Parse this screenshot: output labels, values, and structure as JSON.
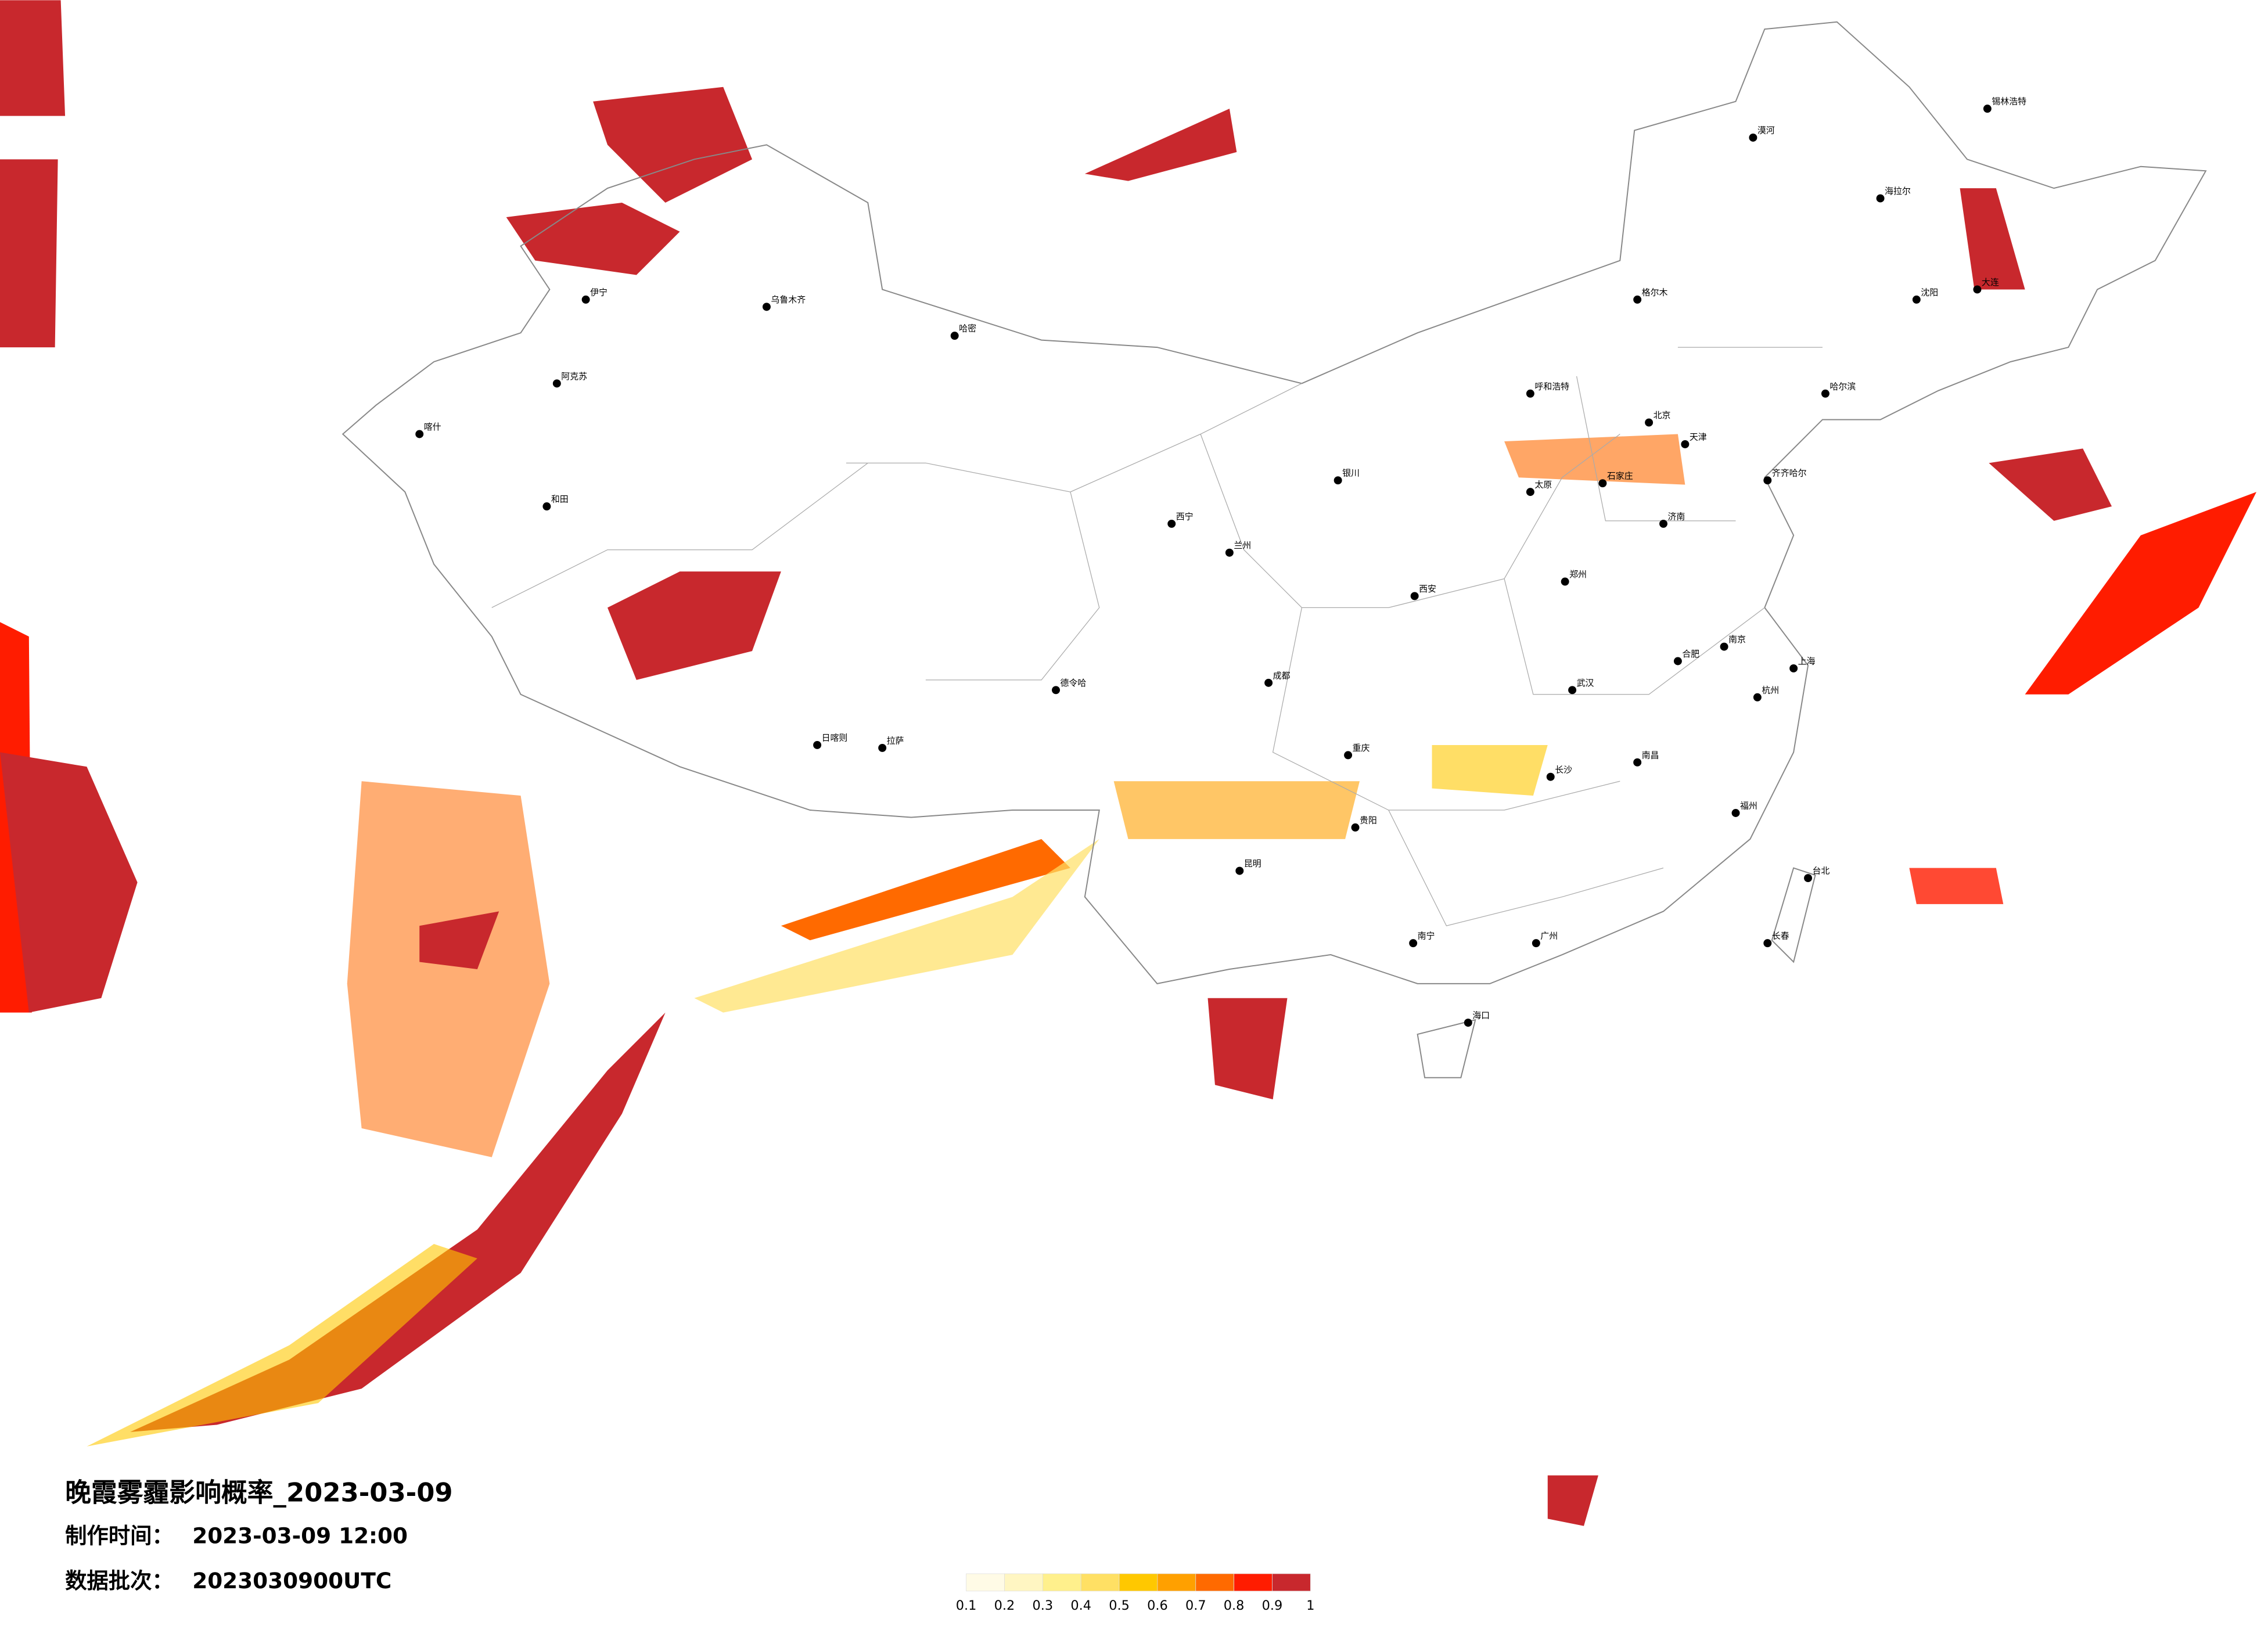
{
  "title": "晚霞雾霾影响概率_2023-03-09",
  "made_label": "制作时间：",
  "made_time": "2023-03-09 12:00",
  "batch_label": "数据批次：",
  "batch": "2023030900UTC",
  "legend": {
    "colors": [
      "#fffbe6",
      "#fff6c2",
      "#fff08c",
      "#ffe064",
      "#ffc800",
      "#ffa000",
      "#ff6a00",
      "#ff1c00",
      "#c8282d"
    ],
    "ticks": [
      0.1,
      0.2,
      0.3,
      0.4,
      0.5,
      0.6,
      0.7,
      0.8,
      0.9,
      1
    ]
  },
  "cities": [
    "乌鲁木齐",
    "哈密",
    "喀什",
    "和田",
    "阿克苏",
    "伊宁",
    "拉萨",
    "日喀则",
    "西宁",
    "兰州",
    "银川",
    "呼和浩特",
    "北京",
    "天津",
    "石家庄",
    "太原",
    "济南",
    "郑州",
    "西安",
    "成都",
    "重庆",
    "贵阳",
    "昆明",
    "南宁",
    "广州",
    "海口",
    "福州",
    "上海",
    "南京",
    "武汉",
    "长沙",
    "南昌",
    "杭州",
    "合肥",
    "台北",
    "长春",
    "沈阳",
    "哈尔滨",
    "大连",
    "齐齐哈尔",
    "海拉尔",
    "漠河",
    "锡林浩特",
    "格尔木",
    "德令哈"
  ]
}
